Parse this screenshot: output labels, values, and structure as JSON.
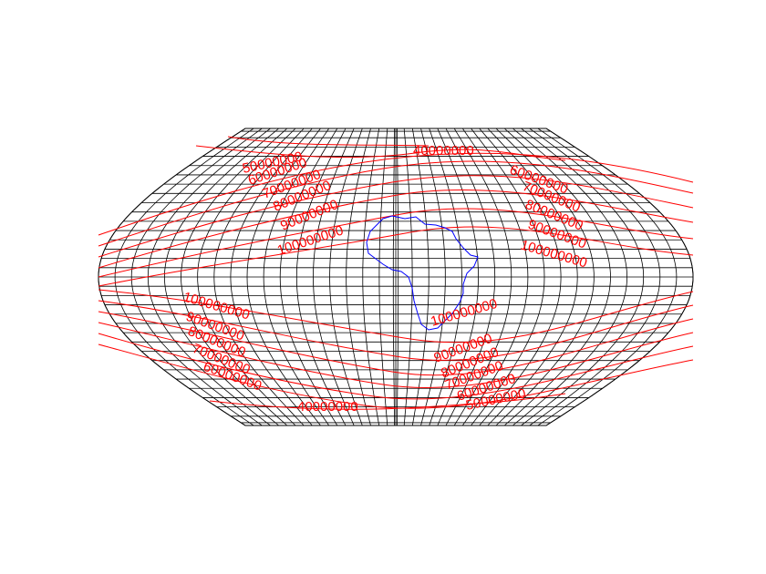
{
  "map": {
    "colors": {
      "graticule": "#000000",
      "contour": "#ff0000",
      "coastline": "#0000ff",
      "background": "#ffffff"
    },
    "graticule": {
      "meridian_step_deg": 10,
      "parallel_step_deg": 5,
      "lat_range": [
        -80,
        80
      ],
      "lon_range": [
        -180,
        180
      ]
    },
    "contour_labels": {
      "north_west": [
        "50000000",
        "60000000",
        "70000000",
        "80000000",
        "90000000",
        "100000000"
      ],
      "north_east": [
        "40000000",
        "60000000",
        "70000000",
        "80000000",
        "90000000",
        "100000000"
      ],
      "south_west": [
        "100000000",
        "90000000",
        "80000000",
        "70000000",
        "60000000",
        "40000000"
      ],
      "south_east": [
        "100000000",
        "90000000",
        "80000000",
        "70000000",
        "60000000",
        "50000000"
      ]
    },
    "coastline_feature": "africa"
  }
}
